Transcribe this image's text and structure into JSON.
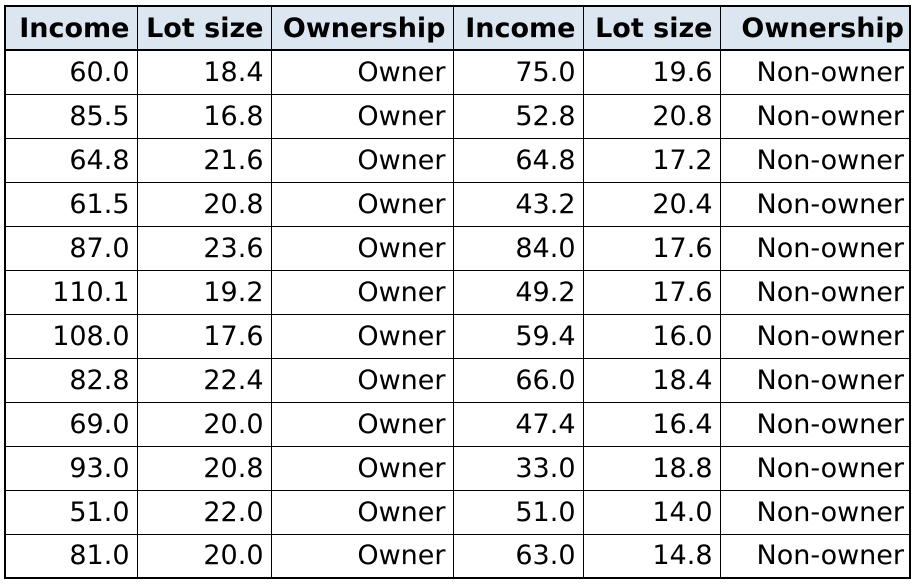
{
  "table": {
    "headers": [
      "Income",
      "Lot size",
      "Ownership",
      "Income",
      "Lot size",
      "Ownership"
    ],
    "rows": [
      [
        "60.0",
        "18.4",
        "Owner",
        "75.0",
        "19.6",
        "Non-owner"
      ],
      [
        "85.5",
        "16.8",
        "Owner",
        "52.8",
        "20.8",
        "Non-owner"
      ],
      [
        "64.8",
        "21.6",
        "Owner",
        "64.8",
        "17.2",
        "Non-owner"
      ],
      [
        "61.5",
        "20.8",
        "Owner",
        "43.2",
        "20.4",
        "Non-owner"
      ],
      [
        "87.0",
        "23.6",
        "Owner",
        "84.0",
        "17.6",
        "Non-owner"
      ],
      [
        "110.1",
        "19.2",
        "Owner",
        "49.2",
        "17.6",
        "Non-owner"
      ],
      [
        "108.0",
        "17.6",
        "Owner",
        "59.4",
        "16.0",
        "Non-owner"
      ],
      [
        "82.8",
        "22.4",
        "Owner",
        "66.0",
        "18.4",
        "Non-owner"
      ],
      [
        "69.0",
        "20.0",
        "Owner",
        "47.4",
        "16.4",
        "Non-owner"
      ],
      [
        "93.0",
        "20.8",
        "Owner",
        "33.0",
        "18.8",
        "Non-owner"
      ],
      [
        "51.0",
        "22.0",
        "Owner",
        "51.0",
        "14.0",
        "Non-owner"
      ],
      [
        "81.0",
        "20.0",
        "Owner",
        "63.0",
        "14.8",
        "Non-owner"
      ]
    ]
  },
  "colors": {
    "header_background": "#dce6f1",
    "border": "#000000",
    "text": "#000000"
  }
}
